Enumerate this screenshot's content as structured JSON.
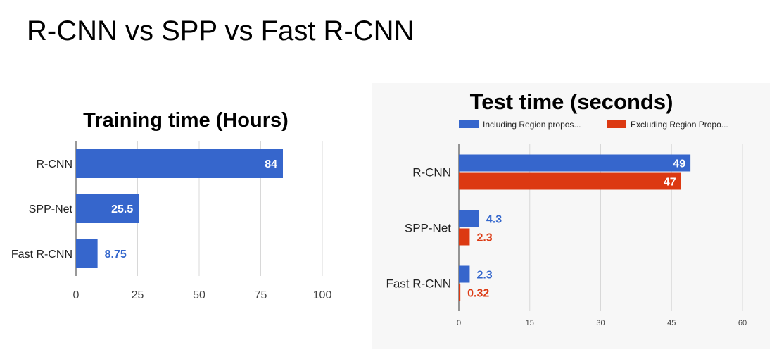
{
  "slide": {
    "title": "R-CNN vs SPP vs Fast R-CNN"
  },
  "colors": {
    "blue": "#3666CC",
    "red": "#DC3912",
    "grid": "#d8d8d8",
    "label_blue": "#3366CC",
    "label_red": "#DC3912"
  },
  "chart_data": [
    {
      "type": "bar",
      "orientation": "horizontal",
      "title": "Training time (Hours)",
      "categories": [
        "R-CNN",
        "SPP-Net",
        "Fast R-CNN"
      ],
      "series": [
        {
          "values": [
            84,
            25.5,
            8.75
          ],
          "value_labels": [
            "84",
            "25.5",
            "8.75"
          ]
        }
      ],
      "xlim": [
        0,
        100
      ],
      "xticks": [
        0,
        25,
        50,
        75,
        100
      ],
      "xlabel": "",
      "ylabel": "",
      "grid": true,
      "legend": "none"
    },
    {
      "type": "bar",
      "orientation": "horizontal",
      "title": "Test time (seconds)",
      "categories": [
        "R-CNN",
        "SPP-Net",
        "Fast R-CNN"
      ],
      "series": [
        {
          "name": "Including Region propos...",
          "values": [
            49,
            4.3,
            2.3
          ],
          "value_labels": [
            "49",
            "4.3",
            "2.3"
          ]
        },
        {
          "name": "Excluding Region Propo...",
          "values": [
            47,
            2.3,
            0.32
          ],
          "value_labels": [
            "47",
            "2.3",
            "0.32"
          ]
        }
      ],
      "xlim": [
        0,
        60
      ],
      "xticks": [
        0,
        15,
        30,
        45,
        60
      ],
      "xlabel": "",
      "ylabel": "",
      "grid": true,
      "legend": "top"
    }
  ]
}
